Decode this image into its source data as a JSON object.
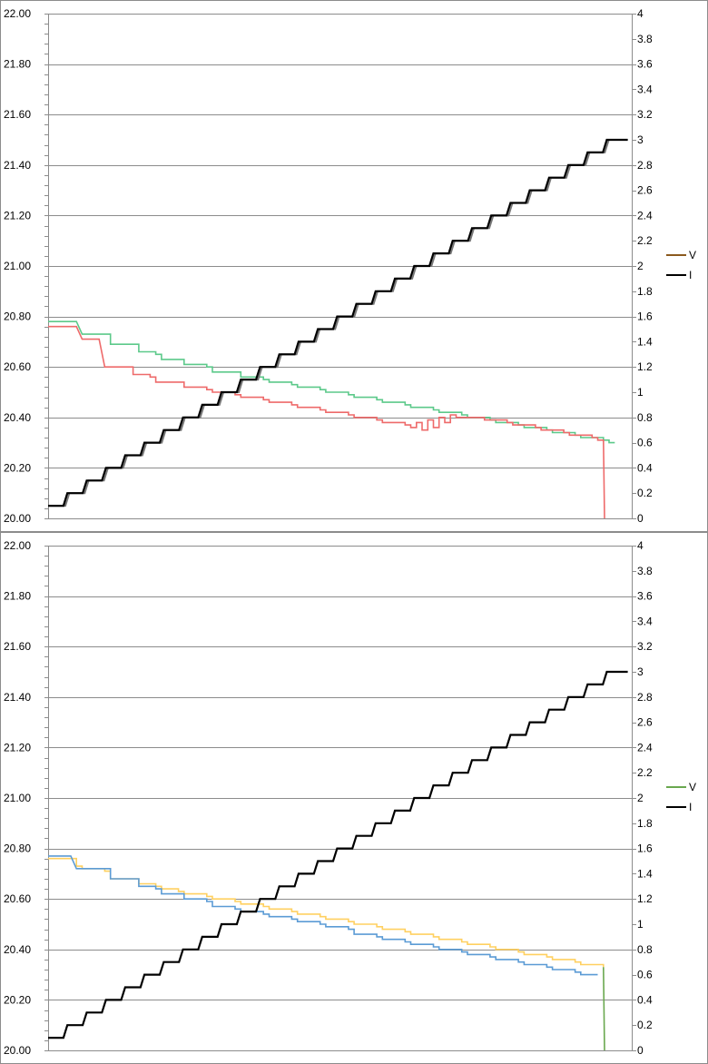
{
  "chart_data": [
    {
      "type": "line",
      "title": "",
      "xlabel": "",
      "ylabel": "",
      "ylim": [
        20.0,
        22.0
      ],
      "y2lim": [
        0,
        4
      ],
      "yticks": [
        "20.00",
        "20.20",
        "20.40",
        "20.60",
        "20.80",
        "21.00",
        "21.20",
        "21.40",
        "21.60",
        "21.80",
        "22.00"
      ],
      "y2ticks": [
        "0",
        "0.2",
        "0.4",
        "0.6",
        "0.8",
        "1",
        "1.2",
        "1.4",
        "1.6",
        "1.8",
        "2",
        "2.2",
        "2.4",
        "2.6",
        "2.8",
        "3",
        "3.2",
        "3.4",
        "3.6",
        "3.8",
        "4"
      ],
      "grid": true,
      "legend_position": "right",
      "legend": [
        {
          "label": "V",
          "color": "#8b5a1e"
        },
        {
          "label": "I",
          "color": "#000000"
        }
      ],
      "voltage_series": [
        {
          "color": "#5cc98a",
          "points": [
            [
              0,
              20.78
            ],
            [
              5,
              20.78
            ],
            [
              6,
              20.73
            ],
            [
              10,
              20.73
            ],
            [
              11,
              20.69
            ],
            [
              15,
              20.69
            ],
            [
              16,
              20.66
            ],
            [
              19,
              20.65
            ],
            [
              20,
              20.63
            ],
            [
              23,
              20.63
            ],
            [
              24,
              20.61
            ],
            [
              28,
              20.6
            ],
            [
              29,
              20.58
            ],
            [
              33,
              20.58
            ],
            [
              34,
              20.56
            ],
            [
              38,
              20.55
            ],
            [
              39,
              20.54
            ],
            [
              43,
              20.53
            ],
            [
              44,
              20.52
            ],
            [
              48,
              20.51
            ],
            [
              49,
              20.5
            ],
            [
              53,
              20.49
            ],
            [
              54,
              20.48
            ],
            [
              58,
              20.47
            ],
            [
              59,
              20.46
            ],
            [
              63,
              20.45
            ],
            [
              64,
              20.44
            ],
            [
              68,
              20.43
            ],
            [
              69,
              20.42
            ],
            [
              73,
              20.41
            ],
            [
              74,
              20.4
            ],
            [
              78,
              20.39
            ],
            [
              79,
              20.38
            ],
            [
              83,
              20.37
            ],
            [
              84,
              20.36
            ],
            [
              88,
              20.35
            ],
            [
              89,
              20.34
            ],
            [
              93,
              20.33
            ],
            [
              94,
              20.32
            ],
            [
              98,
              20.31
            ],
            [
              99,
              20.3
            ],
            [
              100,
              20.3
            ]
          ]
        },
        {
          "color": "#ee6a6a",
          "points": [
            [
              0,
              20.76
            ],
            [
              5,
              20.76
            ],
            [
              6,
              20.71
            ],
            [
              9,
              20.71
            ],
            [
              10,
              20.6
            ],
            [
              14,
              20.6
            ],
            [
              15,
              20.57
            ],
            [
              18,
              20.56
            ],
            [
              19,
              20.54
            ],
            [
              23,
              20.54
            ],
            [
              24,
              20.52
            ],
            [
              28,
              20.51
            ],
            [
              29,
              20.5
            ],
            [
              33,
              20.49
            ],
            [
              34,
              20.48
            ],
            [
              38,
              20.47
            ],
            [
              39,
              20.46
            ],
            [
              43,
              20.45
            ],
            [
              44,
              20.44
            ],
            [
              48,
              20.43
            ],
            [
              49,
              20.42
            ],
            [
              53,
              20.41
            ],
            [
              54,
              20.4
            ],
            [
              58,
              20.39
            ],
            [
              59,
              20.38
            ],
            [
              63,
              20.37
            ],
            [
              64,
              20.36
            ],
            [
              65,
              20.38
            ],
            [
              66,
              20.35
            ],
            [
              67,
              20.39
            ],
            [
              68,
              20.36
            ],
            [
              69,
              20.4
            ],
            [
              70,
              20.38
            ],
            [
              71,
              20.41
            ],
            [
              72,
              20.4
            ],
            [
              76,
              20.4
            ],
            [
              77,
              20.39
            ],
            [
              81,
              20.38
            ],
            [
              82,
              20.37
            ],
            [
              86,
              20.36
            ],
            [
              87,
              20.35
            ],
            [
              91,
              20.34
            ],
            [
              92,
              20.33
            ],
            [
              96,
              20.32
            ],
            [
              97,
              20.31
            ],
            [
              98,
              20.31
            ],
            [
              98.2,
              20.0
            ]
          ]
        }
      ],
      "current_series": {
        "color": "#000000",
        "shadow_color": "#777777",
        "levels": [
          0.1,
          0.2,
          0.3,
          0.4,
          0.5,
          0.6,
          0.7,
          0.8,
          0.9,
          1.0,
          1.1,
          1.2,
          1.3,
          1.4,
          1.5,
          1.6,
          1.7,
          1.8,
          1.9,
          2.0,
          2.1,
          2.2,
          2.3,
          2.4,
          2.5,
          2.6,
          2.7,
          2.8,
          2.9,
          3.0
        ]
      }
    },
    {
      "type": "line",
      "title": "",
      "xlabel": "",
      "ylabel": "",
      "ylim": [
        20.0,
        22.0
      ],
      "y2lim": [
        0,
        4
      ],
      "yticks": [
        "20.00",
        "20.20",
        "20.40",
        "20.60",
        "20.80",
        "21.00",
        "21.20",
        "21.40",
        "21.60",
        "21.80",
        "22.00"
      ],
      "y2ticks": [
        "0",
        "0.2",
        "0.4",
        "0.6",
        "0.8",
        "1",
        "1.2",
        "1.4",
        "1.6",
        "1.8",
        "2",
        "2.2",
        "2.4",
        "2.6",
        "2.8",
        "3",
        "3.2",
        "3.4",
        "3.6",
        "3.8",
        "4"
      ],
      "grid": true,
      "legend_position": "right",
      "legend": [
        {
          "label": "V",
          "color": "#6aa84f"
        },
        {
          "label": "I",
          "color": "#000000"
        }
      ],
      "voltage_series": [
        {
          "color": "#ffd060",
          "points": [
            [
              0,
              20.76
            ],
            [
              5,
              20.73
            ],
            [
              6,
              20.72
            ],
            [
              10,
              20.71
            ],
            [
              11,
              20.68
            ],
            [
              15,
              20.68
            ],
            [
              16,
              20.66
            ],
            [
              19,
              20.65
            ],
            [
              20,
              20.64
            ],
            [
              23,
              20.63
            ],
            [
              24,
              20.62
            ],
            [
              28,
              20.61
            ],
            [
              29,
              20.6
            ],
            [
              33,
              20.59
            ],
            [
              34,
              20.58
            ],
            [
              38,
              20.57
            ],
            [
              39,
              20.56
            ],
            [
              43,
              20.55
            ],
            [
              44,
              20.54
            ],
            [
              48,
              20.53
            ],
            [
              49,
              20.52
            ],
            [
              53,
              20.51
            ],
            [
              54,
              20.5
            ],
            [
              58,
              20.49
            ],
            [
              59,
              20.48
            ],
            [
              63,
              20.47
            ],
            [
              64,
              20.46
            ],
            [
              68,
              20.45
            ],
            [
              69,
              20.44
            ],
            [
              73,
              20.43
            ],
            [
              74,
              20.42
            ],
            [
              78,
              20.41
            ],
            [
              79,
              20.4
            ],
            [
              83,
              20.39
            ],
            [
              84,
              20.38
            ],
            [
              88,
              20.37
            ],
            [
              89,
              20.36
            ],
            [
              93,
              20.35
            ],
            [
              94,
              20.34
            ],
            [
              98,
              20.33
            ]
          ]
        },
        {
          "color": "#5b9bd5",
          "points": [
            [
              0,
              20.77
            ],
            [
              4,
              20.77
            ],
            [
              5,
              20.72
            ],
            [
              10,
              20.72
            ],
            [
              11,
              20.68
            ],
            [
              15,
              20.68
            ],
            [
              16,
              20.65
            ],
            [
              19,
              20.64
            ],
            [
              20,
              20.62
            ],
            [
              23,
              20.62
            ],
            [
              24,
              20.6
            ],
            [
              28,
              20.59
            ],
            [
              29,
              20.57
            ],
            [
              33,
              20.56
            ],
            [
              34,
              20.55
            ],
            [
              38,
              20.54
            ],
            [
              39,
              20.53
            ],
            [
              43,
              20.52
            ],
            [
              44,
              20.51
            ],
            [
              48,
              20.5
            ],
            [
              49,
              20.49
            ],
            [
              53,
              20.48
            ],
            [
              54,
              20.46
            ],
            [
              58,
              20.45
            ],
            [
              59,
              20.44
            ],
            [
              63,
              20.43
            ],
            [
              64,
              20.42
            ],
            [
              68,
              20.41
            ],
            [
              69,
              20.4
            ],
            [
              73,
              20.39
            ],
            [
              74,
              20.38
            ],
            [
              78,
              20.37
            ],
            [
              79,
              20.36
            ],
            [
              83,
              20.35
            ],
            [
              84,
              20.34
            ],
            [
              88,
              20.33
            ],
            [
              89,
              20.32
            ],
            [
              93,
              20.31
            ],
            [
              94,
              20.3
            ],
            [
              97,
              20.3
            ]
          ]
        },
        {
          "color": "#6aa84f",
          "points": [
            [
              98,
              20.33
            ],
            [
              98.2,
              20.0
            ]
          ]
        }
      ],
      "current_series": {
        "color": "#000000",
        "shadow_color": "",
        "levels": [
          0.1,
          0.2,
          0.3,
          0.4,
          0.5,
          0.6,
          0.7,
          0.8,
          0.9,
          1.0,
          1.1,
          1.2,
          1.3,
          1.4,
          1.5,
          1.6,
          1.7,
          1.8,
          1.9,
          2.0,
          2.1,
          2.2,
          2.3,
          2.4,
          2.5,
          2.6,
          2.7,
          2.8,
          2.9,
          3.0
        ]
      }
    }
  ]
}
